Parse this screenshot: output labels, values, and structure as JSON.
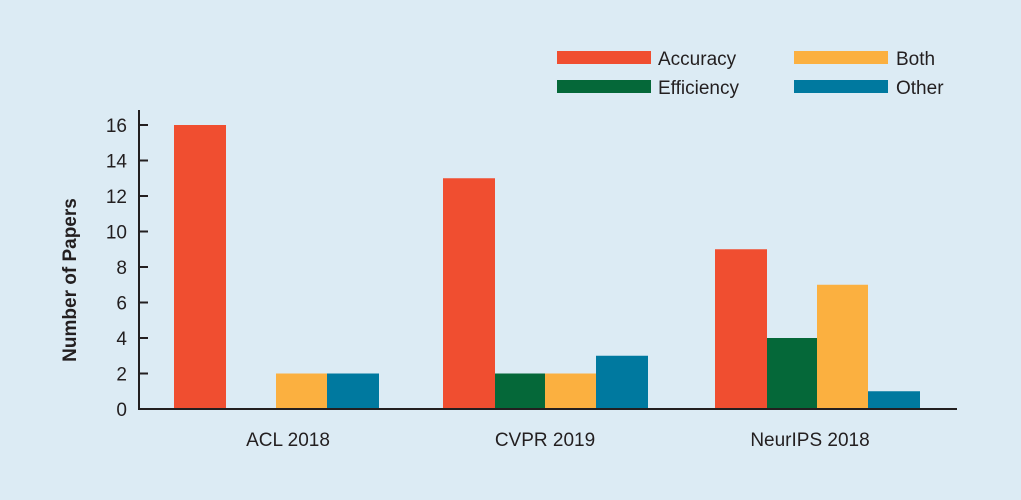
{
  "chart_data": {
    "type": "bar",
    "categories": [
      "ACL 2018",
      "CVPR 2019",
      "NeurIPS 2018"
    ],
    "series": [
      {
        "name": "Accuracy",
        "color": "#f04e30",
        "values": [
          16,
          13,
          9
        ]
      },
      {
        "name": "Efficiency",
        "color": "#056839",
        "values": [
          0,
          2,
          4
        ]
      },
      {
        "name": "Both",
        "color": "#fbb040",
        "values": [
          2,
          2,
          7
        ]
      },
      {
        "name": "Other",
        "color": "#00799f",
        "values": [
          2,
          3,
          1
        ]
      }
    ],
    "title": "",
    "xlabel": "",
    "ylabel": "Number of Papers",
    "ylim": [
      0,
      16
    ],
    "yticks": [
      0,
      2,
      4,
      6,
      8,
      10,
      12,
      14,
      16
    ],
    "grid": false,
    "legend_position": "top-right"
  }
}
